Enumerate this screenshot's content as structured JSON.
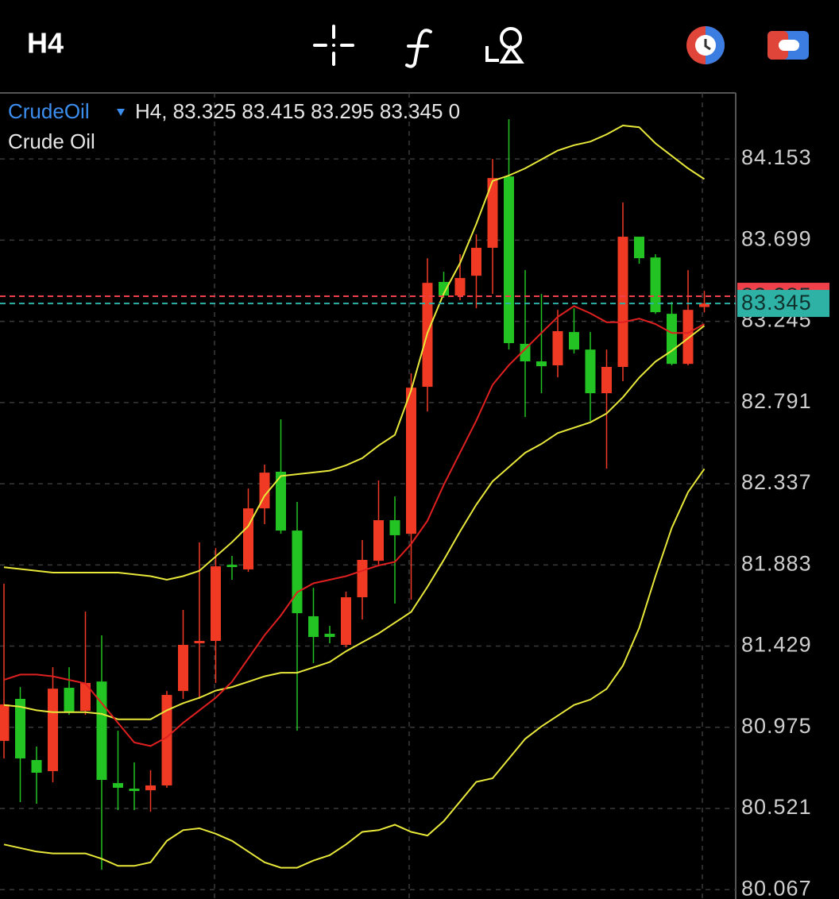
{
  "header": {
    "timeframe": "H4"
  },
  "chart_data": {
    "type": "candlestick",
    "symbol": "CrudeOil",
    "info": "H4, 83.325 83.415 83.295 83.345 0",
    "subtitle": "Crude Oil",
    "up_color": "#f03a24",
    "down_color": "#22c322",
    "open": [
      80.899,
      81.134,
      80.792,
      80.73,
      81.196,
      81.067,
      81.231,
      80.663,
      80.632,
      80.623,
      80.65,
      81.178,
      81.445,
      81.458,
      81.884,
      81.858,
      82.199,
      82.404,
      82.075,
      81.596,
      81.498,
      81.436,
      81.702,
      81.906,
      82.133,
      82.057,
      82.879,
      83.465,
      83.389,
      83.5,
      83.656,
      84.055,
      83.119,
      83.021,
      82.999,
      83.185,
      83.087,
      82.843,
      82.99,
      83.718,
      83.602,
      83.287,
      83.007,
      83.325
    ],
    "high": [
      81.778,
      81.2,
      80.867,
      81.311,
      81.311,
      81.622,
      81.489,
      80.956,
      80.779,
      80.735,
      81.178,
      81.631,
      82.009,
      81.977,
      81.933,
      82.31,
      82.444,
      82.697,
      82.235,
      81.755,
      81.542,
      81.733,
      82.022,
      82.355,
      82.266,
      82.954,
      83.598,
      83.522,
      83.62,
      83.731,
      84.153,
      84.375,
      83.531,
      83.398,
      83.309,
      83.318,
      83.185,
      83.087,
      83.909,
      83.718,
      83.62,
      83.354,
      83.531,
      83.415
    ],
    "low": [
      80.801,
      80.557,
      80.548,
      80.668,
      81.045,
      81.045,
      80.179,
      80.512,
      80.512,
      80.503,
      80.637,
      81.134,
      81.134,
      81.223,
      81.8,
      81.844,
      82.111,
      82.057,
      80.956,
      81.334,
      81.445,
      81.422,
      81.578,
      81.88,
      81.667,
      81.689,
      82.741,
      83.376,
      83.363,
      83.318,
      83.398,
      83.087,
      82.71,
      82.843,
      82.932,
      83.065,
      82.688,
      82.421,
      82.91,
      83.567,
      83.287,
      82.999,
      82.999,
      83.295
    ],
    "close": [
      81.103,
      80.801,
      80.721,
      81.191,
      81.063,
      81.223,
      80.681,
      80.637,
      80.619,
      80.65,
      81.156,
      81.436,
      81.458,
      81.875,
      81.871,
      82.199,
      82.399,
      82.075,
      81.613,
      81.48,
      81.48,
      81.702,
      81.911,
      82.133,
      82.049,
      82.874,
      83.46,
      83.389,
      83.487,
      83.656,
      84.046,
      83.123,
      83.021,
      82.994,
      83.19,
      83.087,
      82.843,
      82.99,
      83.718,
      83.598,
      83.296,
      83.007,
      83.309,
      83.345
    ],
    "series": [
      {
        "color": "#e8e83a",
        "values": [
          81.87,
          81.86,
          81.85,
          81.84,
          81.84,
          81.84,
          81.84,
          81.84,
          81.83,
          81.82,
          81.8,
          81.82,
          81.85,
          81.93,
          82.01,
          82.1,
          82.27,
          82.38,
          82.39,
          82.4,
          82.41,
          82.44,
          82.48,
          82.55,
          82.61,
          82.86,
          83.18,
          83.4,
          83.57,
          83.79,
          84.03,
          84.06,
          84.1,
          84.15,
          84.2,
          84.23,
          84.25,
          84.29,
          84.34,
          84.33,
          84.24,
          84.17,
          84.1,
          84.04
        ]
      },
      {
        "color": "#e8e83a",
        "values": [
          81.1,
          81.09,
          81.07,
          81.06,
          81.06,
          81.06,
          81.05,
          81.02,
          81.02,
          81.02,
          81.07,
          81.11,
          81.14,
          81.18,
          81.2,
          81.23,
          81.26,
          81.28,
          81.28,
          81.31,
          81.34,
          81.4,
          81.45,
          81.5,
          81.56,
          81.62,
          81.76,
          81.91,
          82.07,
          82.22,
          82.35,
          82.43,
          82.51,
          82.56,
          82.62,
          82.65,
          82.68,
          82.73,
          82.82,
          82.93,
          83.02,
          83.08,
          83.15,
          83.22
        ]
      },
      {
        "color": "#e8e83a",
        "values": [
          80.32,
          80.3,
          80.28,
          80.27,
          80.27,
          80.27,
          80.24,
          80.2,
          80.2,
          80.22,
          80.34,
          80.4,
          80.41,
          80.38,
          80.34,
          80.28,
          80.22,
          80.19,
          80.19,
          80.23,
          80.26,
          80.32,
          80.39,
          80.4,
          80.43,
          80.39,
          80.37,
          80.45,
          80.56,
          80.67,
          80.69,
          80.8,
          80.91,
          80.98,
          81.04,
          81.1,
          81.13,
          81.19,
          81.32,
          81.53,
          81.82,
          82.09,
          82.29,
          82.42
        ]
      },
      {
        "color": "#e02020",
        "values": [
          81.24,
          81.27,
          81.27,
          81.26,
          81.24,
          81.22,
          81.11,
          81.0,
          80.89,
          80.87,
          80.92,
          81.0,
          81.07,
          81.14,
          81.23,
          81.36,
          81.49,
          81.6,
          81.73,
          81.78,
          81.8,
          81.82,
          81.85,
          81.88,
          81.9,
          82.0,
          82.13,
          82.33,
          82.51,
          82.69,
          82.89,
          83.0,
          83.09,
          83.18,
          83.27,
          83.33,
          83.29,
          83.24,
          83.24,
          83.26,
          83.23,
          83.18,
          83.18,
          83.23
        ]
      }
    ],
    "price_lines": [
      {
        "value": 83.385,
        "color": "#f0404a"
      },
      {
        "value": 83.345,
        "color": "#2eb2a6"
      }
    ],
    "ylim": [
      80.015,
      84.522
    ],
    "yticks": [
      84.153,
      83.699,
      83.245,
      82.791,
      82.337,
      81.883,
      81.429,
      80.975,
      80.521,
      80.067
    ],
    "grid": true
  }
}
